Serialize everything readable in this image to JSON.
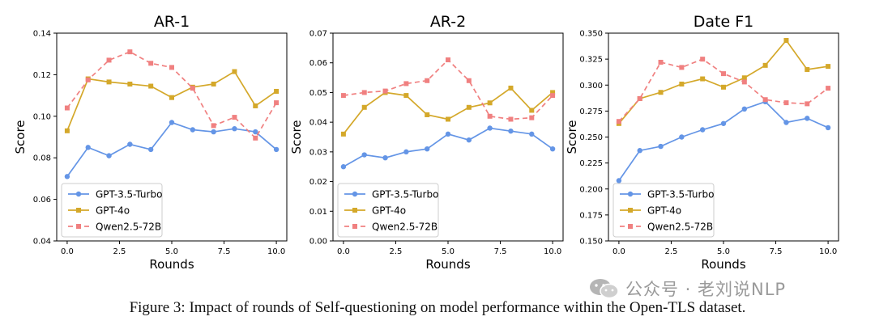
{
  "chart_data": [
    {
      "type": "line",
      "title": "AR-1",
      "xlabel": "Rounds",
      "ylabel": "Score",
      "xlim": [
        -0.5,
        10.5
      ],
      "ylim": [
        0.04,
        0.14
      ],
      "xticks": [
        "0.0",
        "2.5",
        "5.0",
        "7.5",
        "10.0"
      ],
      "yticks": [
        "0.04",
        "0.06",
        "0.08",
        "0.10",
        "0.12",
        "0.14"
      ],
      "legend": "bottom-left",
      "grid": false,
      "x": [
        0,
        1,
        2,
        3,
        4,
        5,
        6,
        7,
        8,
        9,
        10
      ],
      "series": [
        {
          "name": "GPT-3.5-Turbo",
          "color": "#6495e6",
          "style": "solid",
          "marker": "circle",
          "values": [
            0.071,
            0.085,
            0.081,
            0.0865,
            0.084,
            0.097,
            0.0935,
            0.0925,
            0.094,
            0.0925,
            0.084
          ]
        },
        {
          "name": "GPT-4o",
          "color": "#d4a82a",
          "style": "solid",
          "marker": "square",
          "values": [
            0.093,
            0.118,
            0.1165,
            0.1155,
            0.1145,
            0.109,
            0.114,
            0.1155,
            0.1215,
            0.105,
            0.112
          ]
        },
        {
          "name": "Qwen2.5-72B",
          "color": "#f08080",
          "style": "dashed",
          "marker": "square",
          "values": [
            0.104,
            0.1175,
            0.127,
            0.131,
            0.1255,
            0.1235,
            0.1135,
            0.0955,
            0.0995,
            0.0895,
            0.1065
          ]
        }
      ]
    },
    {
      "type": "line",
      "title": "AR-2",
      "xlabel": "Rounds",
      "ylabel": "Score",
      "xlim": [
        -0.5,
        10.5
      ],
      "ylim": [
        0.0,
        0.07
      ],
      "xticks": [
        "0.0",
        "2.5",
        "5.0",
        "7.5",
        "10.0"
      ],
      "yticks": [
        "0.00",
        "0.01",
        "0.02",
        "0.03",
        "0.04",
        "0.05",
        "0.06",
        "0.07"
      ],
      "legend": "bottom-left",
      "grid": false,
      "x": [
        0,
        1,
        2,
        3,
        4,
        5,
        6,
        7,
        8,
        9,
        10
      ],
      "series": [
        {
          "name": "GPT-3.5-Turbo",
          "color": "#6495e6",
          "style": "solid",
          "marker": "circle",
          "values": [
            0.025,
            0.029,
            0.028,
            0.03,
            0.031,
            0.036,
            0.034,
            0.038,
            0.037,
            0.036,
            0.031
          ]
        },
        {
          "name": "GPT-4o",
          "color": "#d4a82a",
          "style": "solid",
          "marker": "square",
          "values": [
            0.036,
            0.045,
            0.05,
            0.049,
            0.0425,
            0.041,
            0.045,
            0.0465,
            0.0515,
            0.044,
            0.05
          ]
        },
        {
          "name": "Qwen2.5-72B",
          "color": "#f08080",
          "style": "dashed",
          "marker": "square",
          "values": [
            0.049,
            0.05,
            0.0505,
            0.053,
            0.054,
            0.061,
            0.054,
            0.042,
            0.041,
            0.0415,
            0.049
          ]
        }
      ]
    },
    {
      "type": "line",
      "title": "Date F1",
      "xlabel": "Rounds",
      "ylabel": "Score",
      "xlim": [
        -0.5,
        10.5
      ],
      "ylim": [
        0.15,
        0.35
      ],
      "xticks": [
        "0.0",
        "2.5",
        "5.0",
        "7.5",
        "10.0"
      ],
      "yticks": [
        "0.150",
        "0.175",
        "0.200",
        "0.225",
        "0.250",
        "0.275",
        "0.300",
        "0.325",
        "0.350"
      ],
      "legend": "bottom-left",
      "grid": false,
      "x": [
        0,
        1,
        2,
        3,
        4,
        5,
        6,
        7,
        8,
        9,
        10
      ],
      "series": [
        {
          "name": "GPT-3.5-Turbo",
          "color": "#6495e6",
          "style": "solid",
          "marker": "circle",
          "values": [
            0.208,
            0.237,
            0.241,
            0.25,
            0.257,
            0.263,
            0.277,
            0.284,
            0.264,
            0.268,
            0.259
          ]
        },
        {
          "name": "GPT-4o",
          "color": "#d4a82a",
          "style": "solid",
          "marker": "square",
          "values": [
            0.263,
            0.287,
            0.293,
            0.301,
            0.306,
            0.298,
            0.307,
            0.319,
            0.343,
            0.315,
            0.318
          ]
        },
        {
          "name": "Qwen2.5-72B",
          "color": "#f08080",
          "style": "dashed",
          "marker": "square",
          "values": [
            0.265,
            0.287,
            0.322,
            0.317,
            0.325,
            0.311,
            0.303,
            0.286,
            0.283,
            0.282,
            0.297
          ]
        }
      ]
    }
  ],
  "caption": "Figure 3: Impact of rounds of Self-questioning on model performance within the Open-TLS dataset.",
  "watermark": "公众号 · 老刘说NLP",
  "watermark_icon": "wechat-icon"
}
